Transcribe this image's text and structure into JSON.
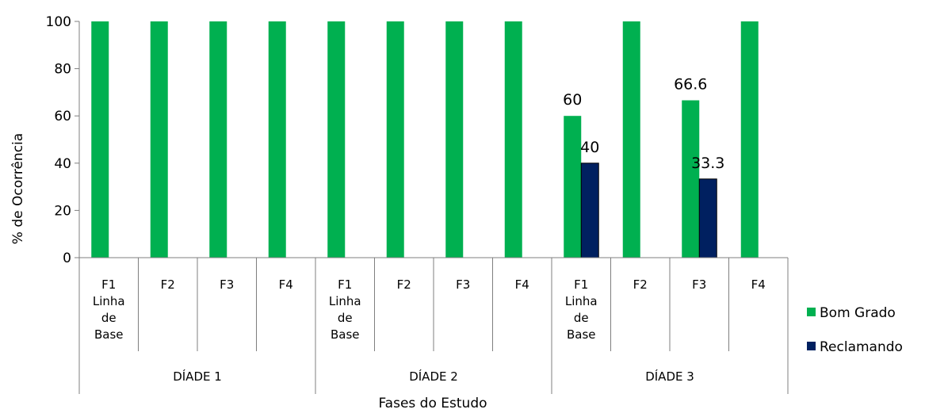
{
  "chart_data": {
    "type": "bar",
    "title": "",
    "xlabel": "Fases do Estudo",
    "ylabel": "% de Ocorrência",
    "ylim": [
      0,
      100
    ],
    "yticks": [
      0,
      20,
      40,
      60,
      80,
      100
    ],
    "grid": false,
    "legend_position": "right",
    "groups": [
      "DÍADE 1",
      "DÍADE 2",
      "DÍADE 3"
    ],
    "categories": [
      [
        "F1",
        "Linha",
        "de",
        "Base"
      ],
      [
        "F2"
      ],
      [
        "F3"
      ],
      [
        "F4"
      ],
      [
        "F1",
        "Linha",
        "de",
        "Base"
      ],
      [
        "F2"
      ],
      [
        "F3"
      ],
      [
        "F4"
      ],
      [
        "F1",
        "Linha",
        "de",
        "Base"
      ],
      [
        "F2"
      ],
      [
        "F3"
      ],
      [
        "F4"
      ]
    ],
    "series": [
      {
        "name": "Bom Grado",
        "color": "#00b050",
        "values": [
          100,
          100,
          100,
          100,
          100,
          100,
          100,
          100,
          60,
          100,
          66.6,
          100
        ],
        "labels": [
          "",
          "",
          "",
          "",
          "",
          "",
          "",
          "",
          "60",
          "",
          "66.6",
          ""
        ]
      },
      {
        "name": "Reclamando",
        "color": "#002060",
        "values": [
          0,
          0,
          0,
          0,
          0,
          0,
          0,
          0,
          40,
          0,
          33.3,
          0
        ],
        "labels": [
          "",
          "",
          "",
          "",
          "",
          "",
          "",
          "",
          "40",
          "",
          "33.3",
          ""
        ]
      }
    ]
  }
}
